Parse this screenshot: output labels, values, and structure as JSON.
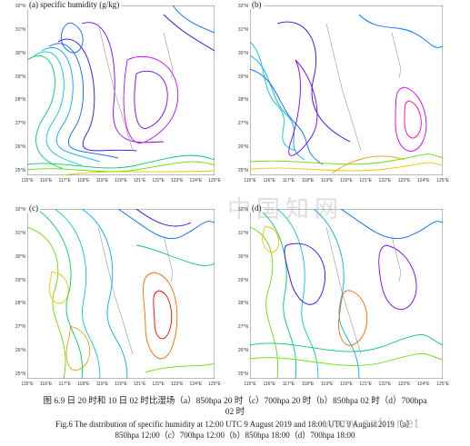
{
  "panels": [
    {
      "label": "(a) specific humidity (g/kg)"
    },
    {
      "label": "(b)"
    },
    {
      "label": "(c)"
    },
    {
      "label": "(d)"
    }
  ],
  "axes": {
    "lat_ticks": [
      "32°N",
      "31°N",
      "30°N",
      "29°N",
      "28°N",
      "27°N",
      "26°N",
      "25°N"
    ],
    "lon_ticks": [
      "115°E",
      "116°E",
      "117°E",
      "118°E",
      "119°E",
      "120°E",
      "121°E",
      "122°E",
      "123°E",
      "124°E",
      "125°E"
    ]
  },
  "caption": {
    "cn_line1": "图 6.9 日 20 时和 10 日 02 时比湿场（a）850hpa 20 时（c）700hpa 20 时（b）850hpa 02 时（d）700hpa",
    "cn_line2": "02 时",
    "en_line1": "Fig.6 The distribution of specific humidity at 12:00 UTC 9 August 2019 and 18:00 UTC 9 August 2019（a）",
    "en_line2": "850hpa 12:00（c）700hpa 12:00（b）850hpa 18:00（d）700hpa 18:00"
  },
  "watermark": {
    "text_cn": "中国知网",
    "text_url": "www.cnki.net"
  },
  "colors": {
    "contours": [
      "#e8c800",
      "#f0a000",
      "#ff6600",
      "#ff0000",
      "#ff00aa",
      "#cc00ff",
      "#7700ff",
      "#3300ff",
      "#0066ff",
      "#00aaff",
      "#00cccc",
      "#00cc66",
      "#66dd00",
      "#aadd00"
    ]
  }
}
